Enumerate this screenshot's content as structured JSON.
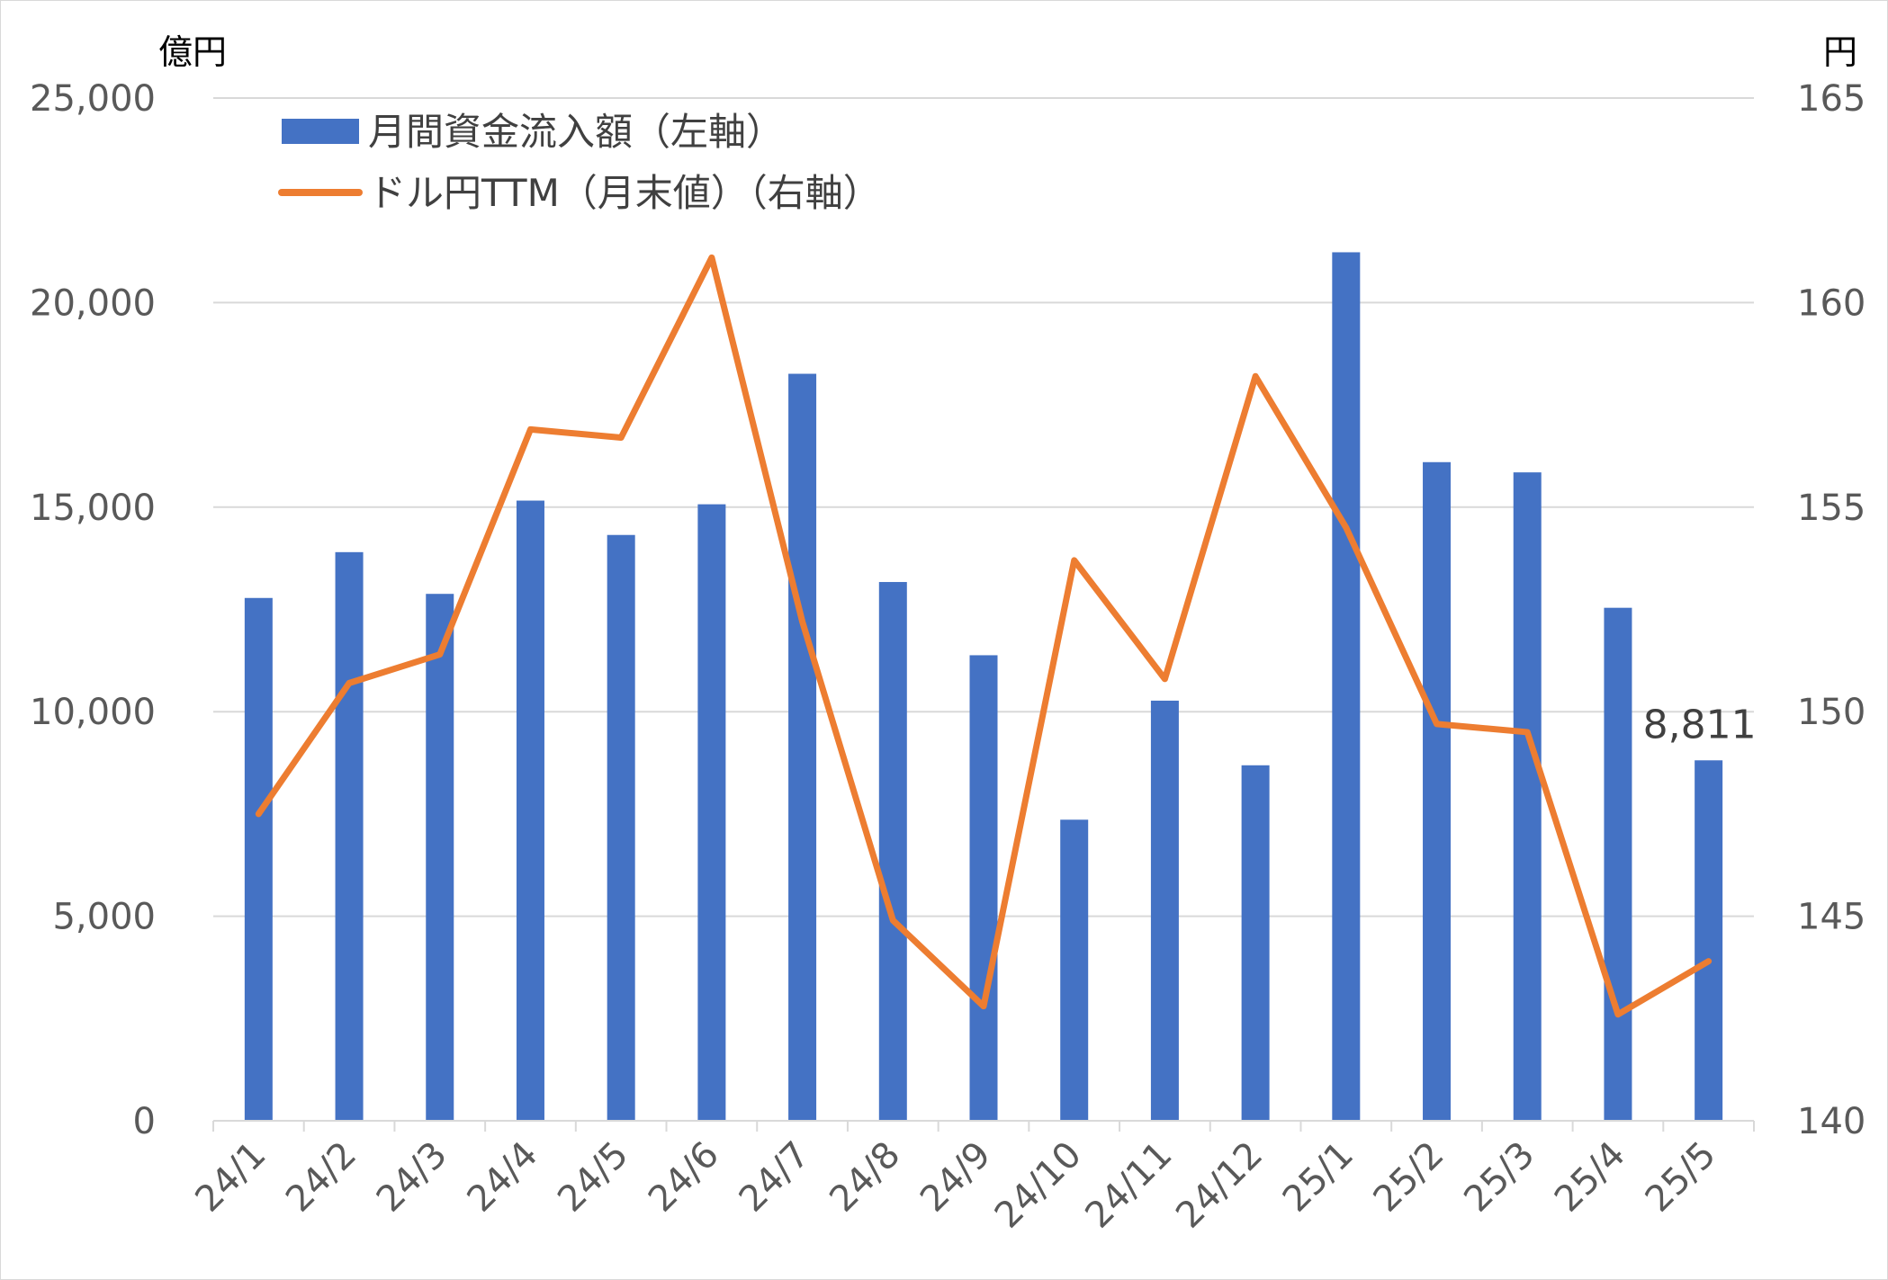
{
  "chart_data": {
    "type": "bar",
    "left_unit": "億円",
    "right_unit": "円",
    "categories": [
      "24/1",
      "24/2",
      "24/3",
      "24/4",
      "24/5",
      "24/6",
      "24/7",
      "24/8",
      "24/9",
      "24/10",
      "24/11",
      "24/12",
      "25/1",
      "25/2",
      "25/3",
      "25/4",
      "25/5"
    ],
    "series": [
      {
        "name": "月間資金流入額（左軸）",
        "type": "bar",
        "axis": "left",
        "color": "#4472C4",
        "values": [
          12780,
          13900,
          12880,
          15160,
          14320,
          15070,
          18260,
          13170,
          11380,
          7360,
          10270,
          8690,
          21230,
          16100,
          15850,
          12540,
          8811
        ]
      },
      {
        "name": "ドル円TTM（月末値）（右軸）",
        "type": "line",
        "axis": "right",
        "color": "#ED7D31",
        "values": [
          147.5,
          150.7,
          151.4,
          156.9,
          156.7,
          161.1,
          152.2,
          144.9,
          142.8,
          153.7,
          150.8,
          158.2,
          154.5,
          149.7,
          149.5,
          142.6,
          143.9
        ]
      }
    ],
    "left_axis": {
      "min": 0,
      "max": 25000,
      "step": 5000,
      "tick_labels": [
        "0",
        "5,000",
        "10,000",
        "15,000",
        "20,000",
        "25,000"
      ]
    },
    "right_axis": {
      "min": 140,
      "max": 165,
      "step": 5,
      "tick_labels": [
        "140",
        "145",
        "150",
        "155",
        "160",
        "165"
      ]
    },
    "data_labels": [
      {
        "series": 0,
        "index": 16,
        "text": "8,811"
      }
    ],
    "legend_position": "top-left",
    "grid": true,
    "gridline_color": "#d9d9d9"
  }
}
